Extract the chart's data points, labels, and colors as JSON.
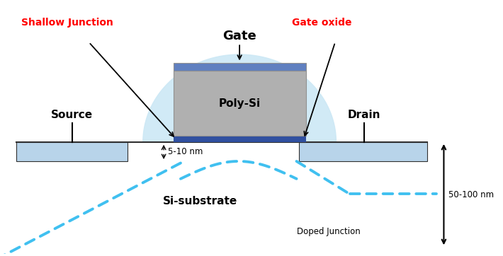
{
  "fig_width": 7.1,
  "fig_height": 3.62,
  "dpi": 100,
  "colors": {
    "light_blue_region": "#cce8f5",
    "source_drain": "#b8d4ea",
    "poly_si": "#b0b0b0",
    "gate_oxide_dark": "#3050a0",
    "gate_oxide_top": "#6080c0",
    "dashed_line": "#40c0f0",
    "background": "#ffffff",
    "black": "#000000",
    "dark_gray": "#303030"
  },
  "labels": {
    "gate": "Gate",
    "poly_si": "Poly-Si",
    "source": "Source",
    "drain": "Drain",
    "shallow_junction": "Shallow Junction",
    "gate_oxide": "Gate oxide",
    "si_substrate": "Si-substrate",
    "doped_junction": "Doped Junction",
    "dim_small": "5-10 nm",
    "dim_large": "50-100 nm"
  }
}
